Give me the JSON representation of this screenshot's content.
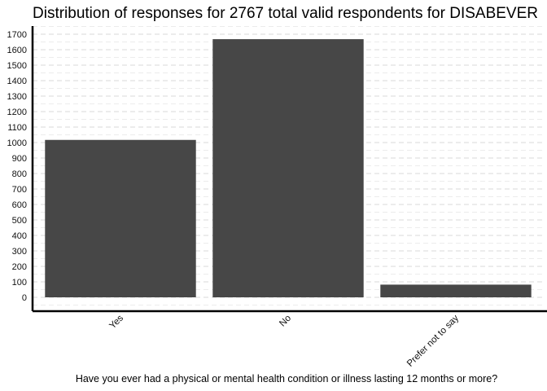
{
  "chart_data": {
    "type": "bar",
    "title": "Distribution of responses for 2767 total valid respondents for DISABEVER",
    "xlabel": "Have you ever had a physical or mental health condition or illness lasting 12 months or more?",
    "ylabel": "",
    "categories": [
      "Yes",
      "No",
      "Prefer not to say"
    ],
    "values": [
      1017,
      1668,
      82
    ],
    "ylim": [
      -50,
      1750
    ],
    "yticks": [
      0,
      100,
      200,
      300,
      400,
      500,
      600,
      700,
      800,
      900,
      1000,
      1100,
      1200,
      1300,
      1400,
      1500,
      1600,
      1700
    ],
    "bar_color": "#474747",
    "grid": true,
    "legend": "none"
  }
}
